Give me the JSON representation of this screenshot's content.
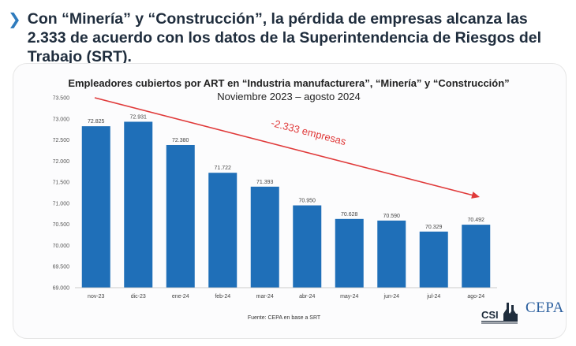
{
  "headline": "Con “Minería” y “Construcción”, la pérdida de empresas alcanza las 2.333 de acuerdo con los datos de la Superintendencia de Riesgos del Trabajo (SRT).",
  "chart_data": {
    "type": "bar",
    "title": "Empleadores cubiertos por ART en “Industria manufacturera”, “Minería” y “Construcción”",
    "subtitle": "Noviembre 2023 – agosto 2024",
    "categories": [
      "nov-23",
      "dic-23",
      "ene-24",
      "feb-24",
      "mar-24",
      "abr-24",
      "may-24",
      "jun-24",
      "jul-24",
      "ago-24"
    ],
    "values": [
      72825,
      72931,
      72380,
      71722,
      71393,
      70950,
      70628,
      70590,
      70329,
      70492
    ],
    "value_labels": [
      "72.825",
      "72.931",
      "72.380",
      "71.722",
      "71.393",
      "70.950",
      "70.628",
      "70.590",
      "70.329",
      "70.492"
    ],
    "ylim": [
      69000,
      73500
    ],
    "yticks": [
      69000,
      69500,
      70000,
      70500,
      71000,
      71500,
      72000,
      72500,
      73000,
      73500
    ],
    "ytick_labels": [
      "69.000",
      "69.500",
      "70.000",
      "70.500",
      "71.000",
      "71.500",
      "72.000",
      "72.500",
      "73.000",
      "73.500"
    ],
    "xlabel": "",
    "ylabel": "",
    "grid": false,
    "annotation": "-2.333 empresas",
    "bar_color": "#1f6fb8",
    "annotation_color": "#e03a3a"
  },
  "source": "Fuente: CEPA en base a SRT",
  "logos": {
    "csi": "CSI",
    "cepa": "CEPA"
  },
  "colors": {
    "headline": "#1f2d3d",
    "chevron": "#2f7bbd"
  },
  "icons": {
    "headline_bullet": "chevron-right-icon"
  }
}
